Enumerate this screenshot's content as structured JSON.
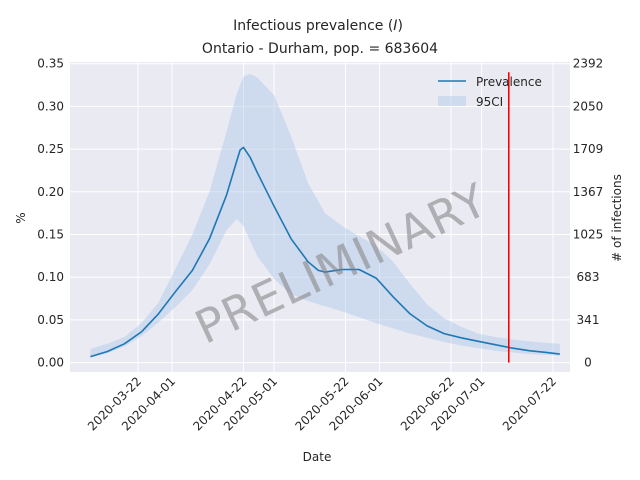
{
  "chart_data": {
    "type": "line",
    "title_line1_prefix": "Infectious prevalence (",
    "title_line1_symbol": "I",
    "title_line1_suffix": ")",
    "title_line2": "Ontario - Durham, pop. = 683604",
    "xlabel": "Date",
    "ylabel": "%",
    "ylabel_right": "# of infections",
    "xlim": [
      "2020-03-02",
      "2020-07-27"
    ],
    "ylim": [
      -0.011,
      0.352
    ],
    "x_ticks": [
      "2020-03-22",
      "2020-04-01",
      "2020-04-22",
      "2020-05-01",
      "2020-05-22",
      "2020-06-01",
      "2020-06-22",
      "2020-07-01",
      "2020-07-22"
    ],
    "y_ticks": [
      0.0,
      0.05,
      0.1,
      0.15,
      0.2,
      0.25,
      0.3,
      0.35
    ],
    "y_tick_labels": [
      "0.00",
      "0.05",
      "0.10",
      "0.15",
      "0.20",
      "0.25",
      "0.30",
      "0.35"
    ],
    "y2_tick_labels": [
      "0",
      "341",
      "683",
      "1025",
      "1367",
      "1709",
      "2050",
      "2392"
    ],
    "grid": true,
    "legend_position": "top-right",
    "series": [
      {
        "name": "Prevalence",
        "color": "#1f77b4",
        "x": [
          "2020-03-08",
          "2020-03-13",
          "2020-03-18",
          "2020-03-23",
          "2020-03-28",
          "2020-04-02",
          "2020-04-07",
          "2020-04-12",
          "2020-04-17",
          "2020-04-20",
          "2020-04-21",
          "2020-04-22",
          "2020-04-24",
          "2020-04-26",
          "2020-05-01",
          "2020-05-06",
          "2020-05-11",
          "2020-05-14",
          "2020-05-16",
          "2020-05-21",
          "2020-05-26",
          "2020-05-31",
          "2020-06-05",
          "2020-06-10",
          "2020-06-15",
          "2020-06-20",
          "2020-06-25",
          "2020-06-30",
          "2020-07-05",
          "2020-07-10",
          "2020-07-15",
          "2020-07-20",
          "2020-07-24"
        ],
        "y": [
          0.007,
          0.013,
          0.022,
          0.036,
          0.057,
          0.083,
          0.108,
          0.145,
          0.196,
          0.236,
          0.249,
          0.252,
          0.24,
          0.223,
          0.183,
          0.145,
          0.118,
          0.108,
          0.106,
          0.109,
          0.109,
          0.099,
          0.077,
          0.057,
          0.043,
          0.034,
          0.029,
          0.025,
          0.021,
          0.017,
          0.014,
          0.012,
          0.01
        ]
      }
    ],
    "band": {
      "name": "95CI",
      "color": "#aec7e8",
      "x": [
        "2020-03-08",
        "2020-03-13",
        "2020-03-18",
        "2020-03-23",
        "2020-03-28",
        "2020-04-02",
        "2020-04-07",
        "2020-04-12",
        "2020-04-17",
        "2020-04-20",
        "2020-04-22",
        "2020-04-24",
        "2020-04-26",
        "2020-05-01",
        "2020-05-06",
        "2020-05-11",
        "2020-05-16",
        "2020-05-21",
        "2020-05-26",
        "2020-05-31",
        "2020-06-05",
        "2020-06-10",
        "2020-06-15",
        "2020-06-20",
        "2020-06-25",
        "2020-06-30",
        "2020-07-05",
        "2020-07-10",
        "2020-07-15",
        "2020-07-20",
        "2020-07-24"
      ],
      "lower": [
        0.006,
        0.011,
        0.019,
        0.031,
        0.047,
        0.065,
        0.085,
        0.115,
        0.155,
        0.168,
        0.16,
        0.142,
        0.125,
        0.098,
        0.08,
        0.072,
        0.066,
        0.06,
        0.053,
        0.046,
        0.04,
        0.034,
        0.029,
        0.024,
        0.02,
        0.017,
        0.014,
        0.012,
        0.01,
        0.009,
        0.008
      ],
      "upper": [
        0.016,
        0.022,
        0.03,
        0.046,
        0.07,
        0.11,
        0.15,
        0.2,
        0.27,
        0.315,
        0.335,
        0.338,
        0.334,
        0.313,
        0.265,
        0.21,
        0.175,
        0.16,
        0.148,
        0.137,
        0.118,
        0.092,
        0.068,
        0.052,
        0.042,
        0.034,
        0.03,
        0.027,
        0.025,
        0.023,
        0.022
      ]
    },
    "vline": {
      "x": "2020-07-09",
      "color": "#ff0000",
      "y_range": [
        0.0,
        0.34
      ]
    },
    "watermark": "PRELIMINARY"
  }
}
